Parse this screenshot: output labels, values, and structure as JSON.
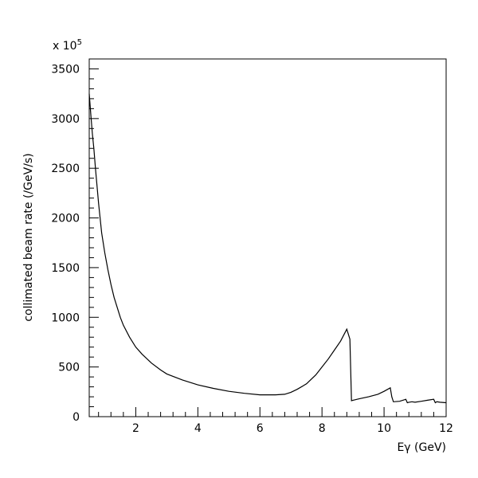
{
  "chart_data": {
    "type": "line",
    "multiplier_label": "x 10",
    "multiplier_exponent": "5",
    "ylabel": "collimated beam rate (/GeV/s)",
    "xlabel": "Eγ (GeV)",
    "xlim": [
      0.5,
      12
    ],
    "ylim": [
      0,
      3600
    ],
    "x_ticks": [
      2,
      4,
      6,
      8,
      10,
      12
    ],
    "y_ticks": [
      0,
      500,
      1000,
      1500,
      2000,
      2500,
      3000,
      3500
    ],
    "grid": false,
    "series": [
      {
        "x": [
          0.5,
          0.55,
          0.6,
          0.65,
          0.7,
          0.8,
          0.9,
          1.0,
          1.1,
          1.2,
          1.3,
          1.4,
          1.5,
          1.6,
          1.8,
          2.0,
          2.2,
          2.5,
          2.8,
          3.0,
          3.5,
          4.0,
          4.5,
          5.0,
          5.5,
          6.0,
          6.5,
          6.8,
          7.0,
          7.2,
          7.5,
          7.8,
          8.0,
          8.2,
          8.4,
          8.6,
          8.8,
          8.9,
          8.95,
          9.0,
          9.2,
          9.5,
          9.8,
          10.0,
          10.2,
          10.25,
          10.3,
          10.5,
          10.7,
          10.75,
          10.8,
          10.9,
          11.0,
          11.2,
          11.4,
          11.6,
          11.65,
          11.7,
          11.8,
          12.0
        ],
        "y": [
          3250,
          3050,
          2850,
          2700,
          2500,
          2150,
          1850,
          1650,
          1480,
          1330,
          1200,
          1100,
          1000,
          920,
          800,
          700,
          630,
          540,
          470,
          430,
          370,
          320,
          285,
          255,
          235,
          220,
          220,
          225,
          245,
          275,
          330,
          420,
          500,
          580,
          670,
          760,
          880,
          780,
          160,
          165,
          180,
          200,
          225,
          255,
          290,
          200,
          150,
          155,
          175,
          140,
          145,
          150,
          145,
          155,
          165,
          175,
          140,
          150,
          145,
          140
        ]
      }
    ]
  }
}
